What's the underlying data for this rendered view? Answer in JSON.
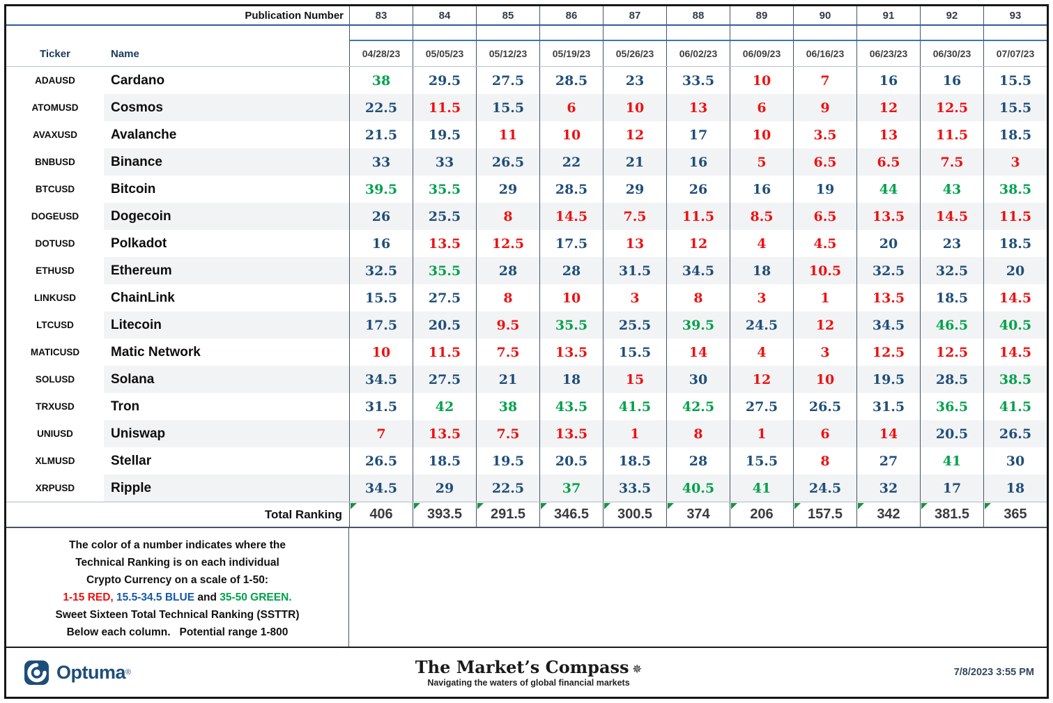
{
  "header": {
    "publication_label": "Publication Number",
    "publications": [
      "83",
      "84",
      "85",
      "86",
      "87",
      "88",
      "89",
      "90",
      "91",
      "92",
      "93"
    ],
    "ticker_label": "Ticker",
    "name_label": "Name",
    "dates": [
      "04/28/23",
      "05/05/23",
      "05/12/23",
      "05/19/23",
      "05/26/23",
      "06/02/23",
      "06/09/23",
      "06/16/23",
      "06/23/23",
      "06/30/23",
      "07/07/23"
    ]
  },
  "rows": [
    {
      "ticker": "ADAUSD",
      "name": "Cardano",
      "values": [
        38,
        29.5,
        27.5,
        28.5,
        23,
        33.5,
        10,
        7,
        16,
        16,
        15.5
      ]
    },
    {
      "ticker": "ATOMUSD",
      "name": "Cosmos",
      "values": [
        22.5,
        11.5,
        15.5,
        6,
        10,
        13,
        6,
        9,
        12,
        12.5,
        15.5
      ]
    },
    {
      "ticker": "AVAXUSD",
      "name": "Avalanche",
      "values": [
        21.5,
        19.5,
        11,
        10,
        12,
        17,
        10,
        3.5,
        13,
        11.5,
        18.5
      ]
    },
    {
      "ticker": "BNBUSD",
      "name": "Binance",
      "values": [
        33,
        33,
        26.5,
        22,
        21,
        16,
        5,
        6.5,
        6.5,
        7.5,
        3
      ]
    },
    {
      "ticker": "BTCUSD",
      "name": "Bitcoin",
      "values": [
        39.5,
        35.5,
        29,
        28.5,
        29,
        26,
        16,
        19,
        44,
        43,
        38.5
      ]
    },
    {
      "ticker": "DOGEUSD",
      "name": "Dogecoin",
      "values": [
        26,
        25.5,
        8,
        14.5,
        7.5,
        11.5,
        8.5,
        6.5,
        13.5,
        14.5,
        11.5
      ]
    },
    {
      "ticker": "DOTUSD",
      "name": "Polkadot",
      "values": [
        16,
        13.5,
        12.5,
        17.5,
        13,
        12,
        4,
        4.5,
        20,
        23,
        18.5
      ]
    },
    {
      "ticker": "ETHUSD",
      "name": "Ethereum",
      "values": [
        32.5,
        35.5,
        28,
        28,
        31.5,
        34.5,
        18,
        10.5,
        32.5,
        32.5,
        20
      ]
    },
    {
      "ticker": "LINKUSD",
      "name": "ChainLink",
      "values": [
        15.5,
        27.5,
        8,
        10,
        3,
        8,
        3,
        1,
        13.5,
        18.5,
        14.5
      ]
    },
    {
      "ticker": "LTCUSD",
      "name": "Litecoin",
      "values": [
        17.5,
        20.5,
        9.5,
        35.5,
        25.5,
        39.5,
        24.5,
        12,
        34.5,
        46.5,
        40.5
      ]
    },
    {
      "ticker": "MATICUSD",
      "name": "Matic Network",
      "values": [
        10,
        11.5,
        7.5,
        13.5,
        15.5,
        14,
        4,
        3,
        12.5,
        12.5,
        14.5
      ]
    },
    {
      "ticker": "SOLUSD",
      "name": "Solana",
      "values": [
        34.5,
        27.5,
        21,
        18,
        15,
        30,
        12,
        10,
        19.5,
        28.5,
        38.5
      ]
    },
    {
      "ticker": "TRXUSD",
      "name": "Tron",
      "values": [
        31.5,
        42,
        38,
        43.5,
        41.5,
        42.5,
        27.5,
        26.5,
        31.5,
        36.5,
        41.5
      ]
    },
    {
      "ticker": "UNIUSD",
      "name": "Uniswap",
      "values": [
        7,
        13.5,
        7.5,
        13.5,
        1,
        8,
        1,
        6,
        14,
        20.5,
        26.5
      ]
    },
    {
      "ticker": "XLMUSD",
      "name": "Stellar",
      "values": [
        26.5,
        18.5,
        19.5,
        20.5,
        18.5,
        28,
        15.5,
        8,
        27,
        41,
        30
      ]
    },
    {
      "ticker": "XRPUSD",
      "name": "Ripple",
      "values": [
        34.5,
        29,
        22.5,
        37,
        33.5,
        40.5,
        41,
        24.5,
        32,
        17,
        18
      ]
    }
  ],
  "total": {
    "label": "Total Ranking",
    "values": [
      406,
      393.5,
      291.5,
      346.5,
      300.5,
      374,
      206,
      157.5,
      342,
      381.5,
      365
    ]
  },
  "color_rule": {
    "red_max": 15,
    "green_min": 35
  },
  "colors": {
    "red": "#ee1111",
    "blue": "#1F4E79",
    "green": "#00A14B",
    "legend_blue": "#1458a8",
    "black": "#111111"
  },
  "legend": {
    "lines_before": [
      "The color of a number indicates where the",
      "Technical Ranking is on each individual",
      "Crypto Currency on a scale of 1-50:"
    ],
    "scale_segments": [
      {
        "text": "1-15 RED,",
        "color": "red"
      },
      {
        "text": " 15.5-34.5 BLUE",
        "color": "legend_blue"
      },
      {
        "text": " and ",
        "color": "black"
      },
      {
        "text": "35-50 GREEN.",
        "color": "green"
      }
    ],
    "lines_after": [
      "Sweet Sixteen Total Technical Ranking (SSTTR)",
      "Below each column.   Potential range 1-800"
    ]
  },
  "footer": {
    "brand": "Optuma",
    "brand_mark": "®",
    "title": "The Market’s Compass",
    "compass_icon": "✵",
    "tagline": "Navigating the waters of global financial markets",
    "timestamp": "7/8/2023 3:55 PM"
  }
}
